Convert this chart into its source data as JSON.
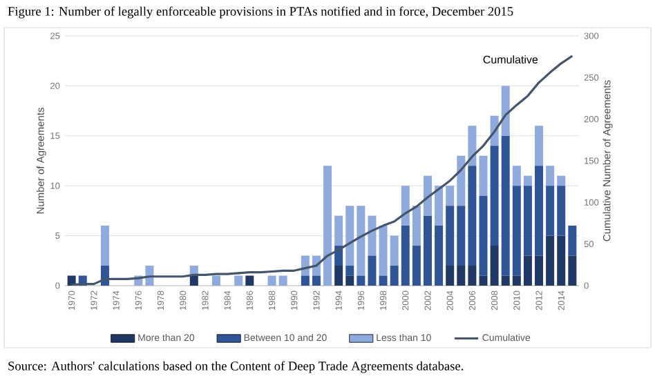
{
  "chart_data": {
    "type": "bar",
    "title": "Figure 1: Number of legally enforceable provisions in PTAs notified and in force, December 2015",
    "ylabel": "Number of Agreements",
    "y2label": "Cumulative Number of Agreements",
    "categories": [
      "1970",
      null,
      "1972",
      null,
      "1974",
      null,
      "1976",
      null,
      "1978",
      null,
      "1980",
      null,
      "1982",
      null,
      "1984",
      null,
      "1986",
      null,
      "1988",
      null,
      "1990",
      null,
      "1992",
      null,
      "1994",
      null,
      "1996",
      null,
      "1998",
      null,
      "2000",
      null,
      "2002",
      null,
      "2004",
      null,
      "2006",
      null,
      "2008",
      null,
      "2010",
      null,
      "2012",
      null,
      "2014",
      null
    ],
    "stacked": true,
    "ylim": [
      0,
      25
    ],
    "yticks": [
      0,
      5,
      10,
      15,
      20,
      25
    ],
    "y2lim": [
      0,
      300
    ],
    "y2ticks": [
      0,
      50,
      100,
      150,
      200,
      250,
      300
    ],
    "grid": "y",
    "legend": "bottom",
    "series": [
      {
        "name": "More than 20",
        "color": "#1f3864",
        "values": [
          1,
          0,
          0,
          0,
          0,
          0,
          0,
          0,
          0,
          0,
          0,
          1,
          0,
          0,
          0,
          0,
          1,
          0,
          0,
          0,
          0,
          0,
          0,
          0,
          2,
          1,
          0,
          0,
          0,
          0,
          0,
          0,
          0,
          0,
          2,
          2,
          2,
          1,
          4,
          1,
          1,
          3,
          3,
          5,
          5,
          3
        ]
      },
      {
        "name": "Between 10 and 20",
        "color": "#2f5597",
        "values": [
          0,
          1,
          0,
          2,
          0,
          0,
          0,
          0,
          0,
          0,
          0,
          0,
          0,
          0,
          0,
          0,
          0,
          0,
          0,
          0,
          0,
          1,
          1,
          0,
          2,
          1,
          1,
          3,
          1,
          2,
          6,
          4,
          7,
          6,
          6,
          6,
          10,
          8,
          10,
          14,
          9,
          7,
          9,
          5,
          5,
          3
        ]
      },
      {
        "name": "Less than 10",
        "color": "#8faadc",
        "values": [
          0,
          0,
          0,
          4,
          0,
          0,
          1,
          2,
          0,
          0,
          0,
          1,
          0,
          1,
          0,
          1,
          0,
          0,
          1,
          1,
          0,
          2,
          2,
          12,
          3,
          6,
          7,
          4,
          5,
          3,
          4,
          4,
          4,
          4,
          2,
          5,
          4,
          4,
          3,
          5,
          2,
          1,
          4,
          2,
          1,
          0
        ]
      },
      {
        "name": "Cumulative",
        "color": "#44546a",
        "type": "line",
        "axis": "y2",
        "values": [
          1,
          2,
          2,
          8,
          8,
          8,
          9,
          11,
          11,
          11,
          11,
          13,
          13,
          14,
          14,
          15,
          16,
          16,
          17,
          18,
          18,
          21,
          24,
          36,
          43,
          51,
          59,
          66,
          72,
          77,
          87,
          95,
          106,
          116,
          126,
          139,
          155,
          168,
          185,
          205,
          217,
          228,
          244,
          256,
          267,
          276
        ]
      }
    ],
    "annotations": [
      "Cumulative",
      "Source: Authors' calculations based on the Content of Deep Trade Agreements database."
    ]
  }
}
